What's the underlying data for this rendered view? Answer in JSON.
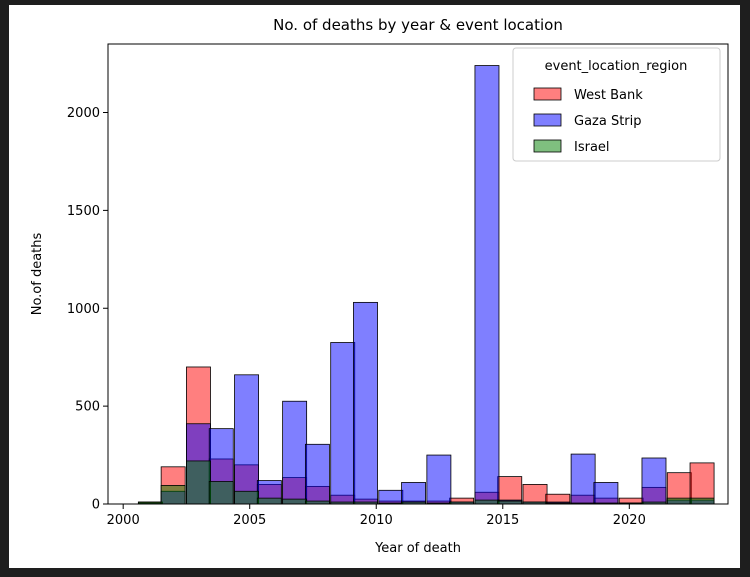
{
  "chart_data": {
    "type": "bar",
    "title": "No. of deaths by year & event location",
    "xlabel": "Year of death",
    "ylabel": "No.of deaths",
    "xlim": [
      1999.4,
      2023.9
    ],
    "ylim": [
      0,
      2350
    ],
    "xticks": [
      2000,
      2005,
      2010,
      2015,
      2020
    ],
    "yticks": [
      0,
      500,
      1000,
      1500,
      2000
    ],
    "grid": false,
    "legend": {
      "title": "event_location_region",
      "placement": "top-right"
    },
    "bin_width": 0.95,
    "x": [
      2000.6,
      2001.5,
      2002.5,
      2003.4,
      2004.4,
      2005.3,
      2006.3,
      2007.2,
      2008.2,
      2009.1,
      2010.1,
      2011.0,
      2012.0,
      2012.9,
      2013.9,
      2014.8,
      2015.8,
      2016.7,
      2017.7,
      2018.6,
      2019.6,
      2020.5,
      2021.5,
      2022.4
    ],
    "series": [
      {
        "name": "West Bank",
        "color": "#ff0000",
        "values": [
          10,
          190,
          700,
          230,
          200,
          100,
          135,
          90,
          45,
          25,
          15,
          15,
          15,
          30,
          60,
          140,
          100,
          50,
          45,
          30,
          30,
          85,
          160,
          210
        ]
      },
      {
        "name": "Gaza Strip",
        "color": "#0000ff",
        "values": [
          5,
          65,
          410,
          385,
          660,
          120,
          525,
          305,
          825,
          1030,
          70,
          110,
          250,
          10,
          2240,
          20,
          10,
          10,
          255,
          110,
          5,
          235,
          20,
          20
        ]
      },
      {
        "name": "Israel",
        "color": "#008000",
        "values": [
          10,
          95,
          220,
          115,
          65,
          30,
          25,
          15,
          10,
          10,
          5,
          10,
          5,
          10,
          20,
          15,
          10,
          5,
          5,
          5,
          5,
          10,
          30,
          30
        ]
      }
    ]
  }
}
